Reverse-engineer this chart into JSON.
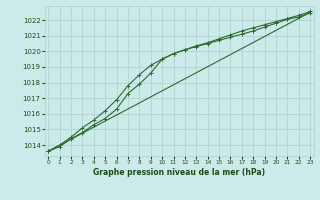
{
  "xlabel": "Graphe pression niveau de la mer (hPa)",
  "bg_color": "#cdeaea",
  "line_color": "#2d6a2d",
  "grid_color": "#aecece",
  "text_color": "#1a4d1a",
  "ylim": [
    1013.3,
    1022.9
  ],
  "xlim": [
    -0.3,
    23.3
  ],
  "yticks": [
    1014,
    1015,
    1016,
    1017,
    1018,
    1019,
    1020,
    1021,
    1022
  ],
  "xticks": [
    0,
    1,
    2,
    3,
    4,
    5,
    6,
    7,
    8,
    9,
    10,
    11,
    12,
    13,
    14,
    15,
    16,
    17,
    18,
    19,
    20,
    21,
    22,
    23
  ],
  "series1_x": [
    0,
    1,
    2,
    3,
    4,
    5,
    6,
    7,
    8,
    9,
    10,
    11,
    12,
    13,
    14,
    15,
    16,
    17,
    18,
    19,
    20,
    21,
    22,
    23
  ],
  "series1_y": [
    1013.6,
    1013.9,
    1014.4,
    1014.8,
    1015.3,
    1015.7,
    1016.3,
    1017.3,
    1017.9,
    1018.6,
    1019.5,
    1019.85,
    1020.1,
    1020.3,
    1020.5,
    1020.7,
    1020.9,
    1021.1,
    1021.3,
    1021.55,
    1021.8,
    1022.05,
    1022.2,
    1022.45
  ],
  "series2_x": [
    0,
    1,
    2,
    3,
    4,
    5,
    6,
    7,
    8,
    9,
    10,
    11,
    12,
    13,
    14,
    15,
    16,
    17,
    18,
    19,
    20,
    21,
    22,
    23
  ],
  "series2_y": [
    1013.6,
    1013.9,
    1014.3,
    1014.7,
    1015.1,
    1015.5,
    1016.0,
    1016.7,
    1017.5,
    1018.3,
    1019.0,
    1019.5,
    1019.9,
    1020.2,
    1020.5,
    1020.75,
    1021.0,
    1021.25,
    1021.5,
    1021.7,
    1021.9,
    1022.1,
    1022.3,
    1022.5
  ],
  "series3_x": [
    0,
    1,
    2,
    3,
    4,
    5,
    6,
    7,
    8,
    9,
    10,
    11,
    12,
    13,
    14,
    15,
    16,
    17,
    18,
    19,
    20,
    21,
    22,
    23
  ],
  "series3_y": [
    1013.6,
    1014.0,
    1014.5,
    1015.1,
    1015.6,
    1016.2,
    1016.9,
    1017.8,
    1018.5,
    1019.1,
    1019.5,
    1019.85,
    1020.1,
    1020.35,
    1020.55,
    1020.8,
    1021.05,
    1021.3,
    1021.5,
    1021.7,
    1021.9,
    1022.1,
    1022.3,
    1022.55
  ]
}
